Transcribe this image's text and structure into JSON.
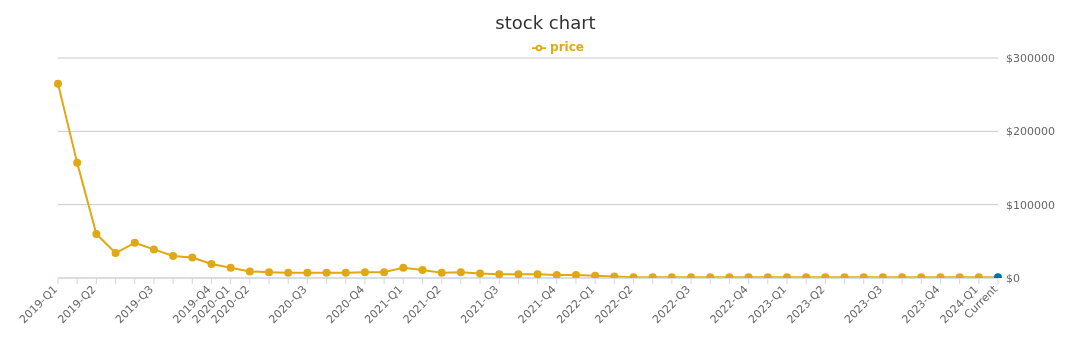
{
  "chart_data": {
    "type": "line",
    "title": "stock chart",
    "categories": [
      "2019-Q1",
      null,
      "2019-Q2",
      null,
      null,
      "2019-Q3",
      null,
      null,
      "2019-Q4",
      "2020-Q1",
      "2020-Q2",
      null,
      null,
      "2020-Q3",
      null,
      null,
      "2020-Q4",
      null,
      "2021-Q1",
      null,
      "2021-Q2",
      null,
      null,
      "2021-Q3",
      null,
      null,
      "2021-Q4",
      null,
      "2022-Q1",
      null,
      "2022-Q2",
      null,
      null,
      "2022-Q3",
      null,
      null,
      "2022-Q4",
      null,
      "2023-Q1",
      null,
      "2023-Q2",
      null,
      null,
      "2023-Q3",
      null,
      null,
      "2023-Q4",
      null,
      "2024-Q1",
      "Current"
    ],
    "series": [
      {
        "name": "price",
        "color": "#e0a814",
        "colors": [
          "#e0a814",
          "#e0a814",
          "#e0a814",
          "#e0a814",
          "#e0a814",
          "#e0a814",
          "#e0a814",
          "#e0a814",
          "#e0a814",
          "#e0a814",
          "#e0a814",
          "#e0a814",
          "#e0a814",
          "#e0a814",
          "#e0a814",
          "#e0a814",
          "#e0a814",
          "#e0a814",
          "#e0a814",
          "#e0a814",
          "#e0a814",
          "#e0a814",
          "#e0a814",
          "#e0a814",
          "#e0a814",
          "#e0a814",
          "#e0a814",
          "#e0a814",
          "#e0a814",
          "#e0a814",
          "#e0a814",
          "#e0a814",
          "#e0a814",
          "#e0a814",
          "#e0a814",
          "#e0a814",
          "#e0a814",
          "#e0a814",
          "#e0a814",
          "#e0a814",
          "#e0a814",
          "#e0a814",
          "#e0a814",
          "#e0a814",
          "#e0a814",
          "#e0a814",
          "#e0a814",
          "#e0a814",
          "#e0a814",
          "#0b6fad"
        ],
        "values": [
          265000,
          157000,
          60000,
          34000,
          48000,
          39000,
          30000,
          28000,
          19000,
          14000,
          9000,
          8000,
          7000,
          7000,
          7000,
          7000,
          8000,
          8000,
          14000,
          11000,
          7000,
          8000,
          6000,
          5000,
          5000,
          5000,
          4000,
          4000,
          3000,
          2000,
          1000,
          1000,
          1000,
          1000,
          1000,
          1000,
          1000,
          1000,
          1000,
          1000,
          1000,
          1000,
          1000,
          1000,
          1000,
          1000,
          1000,
          1000,
          1000,
          1000
        ]
      }
    ],
    "ylim": [
      0,
      300000
    ],
    "yticks": [
      {
        "value": 0,
        "label": "$0"
      },
      {
        "value": 100000,
        "label": "$100000"
      },
      {
        "value": 200000,
        "label": "$200000"
      },
      {
        "value": 300000,
        "label": "$300000"
      }
    ],
    "grid": "y",
    "legend": "top",
    "marker": "circle",
    "line_style": "solid"
  }
}
